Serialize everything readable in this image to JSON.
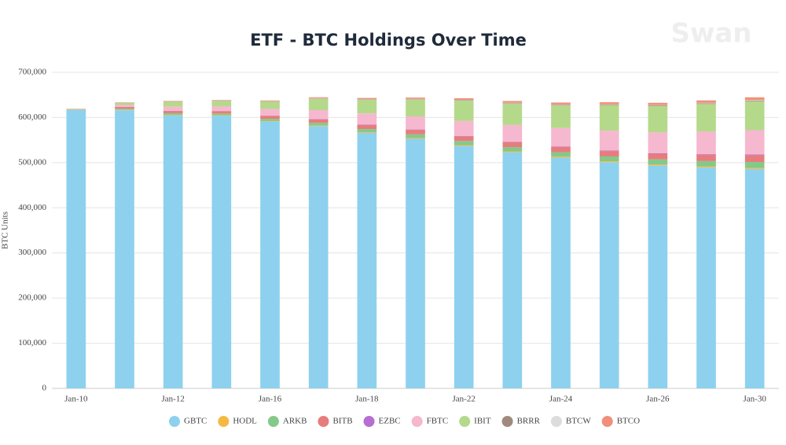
{
  "chart_data": {
    "type": "stacked-bar",
    "title": "ETF - BTC Holdings Over Time",
    "watermark": "Swan",
    "y_label": "BTC Units",
    "categories": [
      "Jan-10",
      null,
      "Jan-12",
      null,
      "Jan-16",
      null,
      "Jan-18",
      null,
      "Jan-22",
      null,
      "Jan-24",
      null,
      "Jan-26",
      null,
      "Jan-30"
    ],
    "ylim": [
      0,
      700000
    ],
    "yticks": [
      0,
      {
        "value": 100000,
        "label": "100,000"
      },
      {
        "value": 200000,
        "label": "200,000"
      },
      {
        "value": 300000,
        "label": "300,000"
      },
      {
        "value": 400000,
        "label": "400,000"
      },
      {
        "value": 500000,
        "label": "500,000"
      },
      {
        "value": 600000,
        "label": "600,000"
      },
      {
        "value": 700000,
        "label": "700,000"
      }
    ],
    "grid": true,
    "legend": "bottom",
    "series": [
      {
        "name": "GBTC",
        "color": "#8ed1ee",
        "values": [
          617000,
          616000,
          605000,
          604000,
          591000,
          581000,
          566000,
          553000,
          537000,
          523000,
          511000,
          501000,
          494000,
          489000,
          486000
        ]
      },
      {
        "name": "HODL",
        "color": "#f5b942",
        "values": [
          300,
          800,
          1000,
          1000,
          1100,
          1300,
          1500,
          1700,
          1900,
          2000,
          2100,
          2200,
          2300,
          2400,
          2500
        ]
      },
      {
        "name": "ARKB",
        "color": "#84c98a",
        "values": [
          500,
          2500,
          3500,
          3800,
          5000,
          6000,
          7000,
          8000,
          9000,
          9500,
          10000,
          10500,
          11000,
          12000,
          13000
        ]
      },
      {
        "name": "BITB",
        "color": "#e87c7c",
        "values": [
          500,
          4000,
          5000,
          5200,
          6500,
          7500,
          9000,
          10000,
          10500,
          11000,
          11500,
          12000,
          12500,
          14000,
          15000
        ]
      },
      {
        "name": "EZBC",
        "color": "#b66fd0",
        "values": [
          100,
          300,
          400,
          400,
          500,
          600,
          700,
          800,
          900,
          1000,
          1100,
          1200,
          1300,
          1400,
          1500
        ]
      },
      {
        "name": "FBTC",
        "color": "#f5b8cf",
        "values": [
          300,
          4000,
          9000,
          10000,
          15000,
          20000,
          25000,
          29000,
          33000,
          37000,
          41000,
          44000,
          46000,
          50000,
          54000
        ]
      },
      {
        "name": "IBIT",
        "color": "#b5d98a",
        "values": [
          500,
          4500,
          11000,
          12000,
          16000,
          25000,
          30000,
          37000,
          45000,
          47000,
          50000,
          56000,
          58000,
          61000,
          64000
        ]
      },
      {
        "name": "BRRR",
        "color": "#a08a7e",
        "values": [
          100,
          400,
          500,
          600,
          700,
          800,
          900,
          1000,
          1100,
          1200,
          1300,
          1400,
          1500,
          1600,
          1700
        ]
      },
      {
        "name": "BTCW",
        "color": "#dcdcdc",
        "values": [
          100,
          300,
          400,
          400,
          500,
          600,
          600,
          700,
          700,
          800,
          800,
          900,
          900,
          1000,
          1000
        ]
      },
      {
        "name": "BTCO",
        "color": "#f0907a",
        "values": [
          300,
          700,
          1000,
          1200,
          1500,
          2000,
          2500,
          3000,
          3500,
          4000,
          4300,
          4600,
          5000,
          5500,
          6000
        ]
      }
    ]
  }
}
